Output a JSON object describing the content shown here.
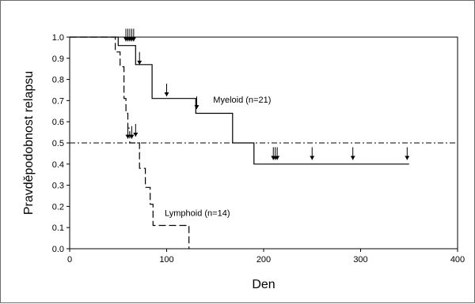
{
  "chart_data": {
    "type": "line",
    "title": "",
    "xlabel": "Den",
    "ylabel": "Pravděpodobnost relapsu",
    "xlim": [
      0,
      400
    ],
    "ylim": [
      0,
      1.0
    ],
    "xticks": [
      0,
      100,
      200,
      300,
      400
    ],
    "yticks": [
      0.0,
      0.1,
      0.2,
      0.3,
      0.4,
      0.5,
      0.6,
      0.7,
      0.8,
      0.9,
      1.0
    ],
    "grid": false,
    "reference_line": {
      "y": 0.5,
      "style": "dash-dot"
    },
    "series": [
      {
        "name": "Myeloid (n=21)",
        "label": "Myeloid (n=21)",
        "style": "solid",
        "steps": [
          [
            0,
            1.0
          ],
          [
            50,
            1.0
          ],
          [
            50,
            0.96
          ],
          [
            68,
            0.96
          ],
          [
            68,
            0.87
          ],
          [
            85,
            0.87
          ],
          [
            85,
            0.71
          ],
          [
            130,
            0.71
          ],
          [
            130,
            0.64
          ],
          [
            168,
            0.64
          ],
          [
            168,
            0.5
          ],
          [
            190,
            0.5
          ],
          [
            190,
            0.4
          ],
          [
            350,
            0.4
          ]
        ],
        "censored": [
          [
            58,
            0.98
          ],
          [
            60,
            0.98
          ],
          [
            62,
            0.98
          ],
          [
            64,
            0.98
          ],
          [
            66,
            0.98
          ],
          [
            72,
            0.87
          ],
          [
            100,
            0.72
          ],
          [
            131,
            0.66
          ],
          [
            210,
            0.42
          ],
          [
            212,
            0.42
          ],
          [
            214,
            0.42
          ],
          [
            250,
            0.42
          ],
          [
            292,
            0.42
          ],
          [
            348,
            0.42
          ]
        ]
      },
      {
        "name": "Lymphoid (n=14)",
        "label": "Lymphoid (n=14)",
        "style": "dashed",
        "steps": [
          [
            0,
            1.0
          ],
          [
            47,
            1.0
          ],
          [
            47,
            0.93
          ],
          [
            52,
            0.93
          ],
          [
            52,
            0.86
          ],
          [
            56,
            0.86
          ],
          [
            56,
            0.71
          ],
          [
            58,
            0.71
          ],
          [
            58,
            0.64
          ],
          [
            60,
            0.64
          ],
          [
            60,
            0.57
          ],
          [
            62,
            0.57
          ],
          [
            62,
            0.5
          ],
          [
            72,
            0.5
          ],
          [
            72,
            0.38
          ],
          [
            78,
            0.38
          ],
          [
            78,
            0.29
          ],
          [
            83,
            0.29
          ],
          [
            83,
            0.21
          ],
          [
            86,
            0.21
          ],
          [
            86,
            0.11
          ],
          [
            123,
            0.11
          ],
          [
            123,
            0.0
          ]
        ],
        "censored": [
          [
            60,
            0.52
          ],
          [
            64,
            0.52
          ],
          [
            68,
            0.53
          ]
        ]
      }
    ]
  }
}
